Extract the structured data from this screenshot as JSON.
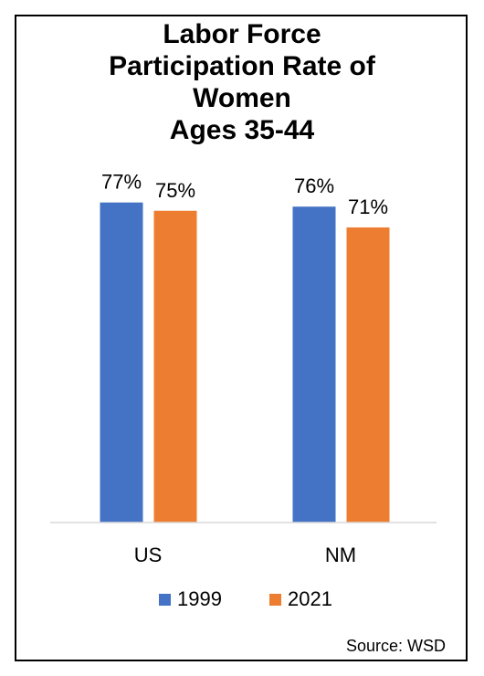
{
  "chart_data": {
    "type": "bar",
    "title_lines": [
      "Labor Force",
      "Participation Rate of",
      "Women",
      "Ages 35-44"
    ],
    "categories": [
      "US",
      "NM"
    ],
    "series": [
      {
        "name": "1999",
        "values": [
          77,
          76
        ],
        "labels": [
          "77%",
          "76%"
        ],
        "color": "#4472C4"
      },
      {
        "name": "2021",
        "values": [
          75,
          71
        ],
        "labels": [
          "75%",
          "71%"
        ],
        "color": "#ED7D31"
      }
    ],
    "ylim": [
      0,
      100
    ],
    "value_format": "percent",
    "legend_position": "bottom",
    "grid": false
  },
  "source": "Source: WSD"
}
